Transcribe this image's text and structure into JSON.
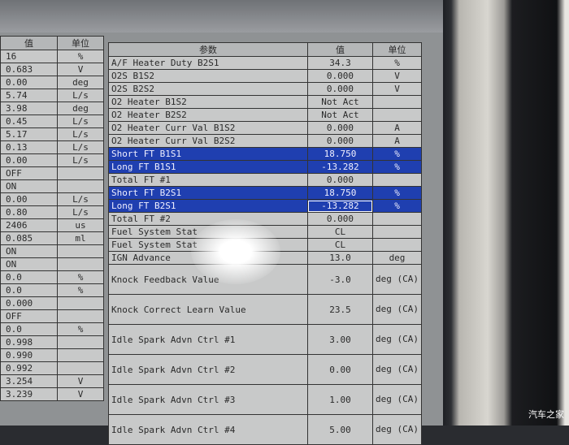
{
  "left_table": {
    "headers": [
      "值",
      "单位"
    ],
    "rows": [
      [
        "16",
        "%"
      ],
      [
        "0.683",
        "V"
      ],
      [
        "0.00",
        "deg"
      ],
      [
        "5.74",
        "L/s"
      ],
      [
        "3.98",
        "deg"
      ],
      [
        "0.45",
        "L/s"
      ],
      [
        "5.17",
        "L/s"
      ],
      [
        "0.13",
        "L/s"
      ],
      [
        "0.00",
        "L/s"
      ],
      [
        "OFF",
        ""
      ],
      [
        "ON",
        ""
      ],
      [
        "0.00",
        "L/s"
      ],
      [
        "0.80",
        "L/s"
      ],
      [
        "2406",
        "us"
      ],
      [
        "0.085",
        "ml"
      ],
      [
        "ON",
        ""
      ],
      [
        "ON",
        ""
      ],
      [
        "0.0",
        "%"
      ],
      [
        "0.0",
        "%"
      ],
      [
        "0.000",
        ""
      ],
      [
        "OFF",
        ""
      ],
      [
        "0.0",
        "%"
      ],
      [
        "0.998",
        ""
      ],
      [
        "0.990",
        ""
      ],
      [
        "0.992",
        ""
      ],
      [
        "3.254",
        "V"
      ],
      [
        "3.239",
        "V"
      ]
    ]
  },
  "right_table": {
    "headers": [
      "参数",
      "值",
      "单位"
    ],
    "rows": [
      {
        "param": "A/F Heater Duty B2S1",
        "value": "34.3",
        "unit": "%"
      },
      {
        "param": "O2S B1S2",
        "value": "0.000",
        "unit": "V"
      },
      {
        "param": "O2S B2S2",
        "value": "0.000",
        "unit": "V"
      },
      {
        "param": "O2 Heater B1S2",
        "value": "Not Act",
        "unit": ""
      },
      {
        "param": "O2 Heater B2S2",
        "value": "Not Act",
        "unit": ""
      },
      {
        "param": "O2 Heater Curr Val B1S2",
        "value": "0.000",
        "unit": "A"
      },
      {
        "param": "O2 Heater Curr Val B2S2",
        "value": "0.000",
        "unit": "A"
      },
      {
        "param": "Short FT B1S1",
        "value": "18.750",
        "unit": "%",
        "selected": true
      },
      {
        "param": "Long FT B1S1",
        "value": "-13.282",
        "unit": "%",
        "selected": true
      },
      {
        "param": "Total FT #1",
        "value": "0.000",
        "unit": ""
      },
      {
        "param": "Short FT B2S1",
        "value": "18.750",
        "unit": "%",
        "selected": true
      },
      {
        "param": "Long FT B2S1",
        "value": "-13.282",
        "unit": "%",
        "selected": true
      },
      {
        "param": "Total FT #2",
        "value": "0.000",
        "unit": ""
      },
      {
        "param": "Fuel System Stat",
        "value": "CL",
        "unit": ""
      },
      {
        "param": "Fuel System Stat",
        "value": "CL",
        "unit": ""
      },
      {
        "param": "IGN Advance",
        "value": "13.0",
        "unit": "deg"
      },
      {
        "param": "Knock Feedback Value",
        "value": "-3.0",
        "unit": "deg (CA)"
      },
      {
        "param": "Knock Correct Learn Value",
        "value": "23.5",
        "unit": "deg (CA)"
      },
      {
        "param": "Idle Spark Advn Ctrl #1",
        "value": "3.00",
        "unit": "deg (CA)"
      },
      {
        "param": "Idle Spark Advn Ctrl #2",
        "value": "0.00",
        "unit": "deg (CA)"
      },
      {
        "param": "Idle Spark Advn Ctrl #3",
        "value": "1.00",
        "unit": "deg (CA)"
      },
      {
        "param": "Idle Spark Advn Ctrl #4",
        "value": "5.00",
        "unit": "deg (CA)"
      }
    ]
  },
  "selection_color": "#1f3fb0",
  "watermark": "汽车之家"
}
